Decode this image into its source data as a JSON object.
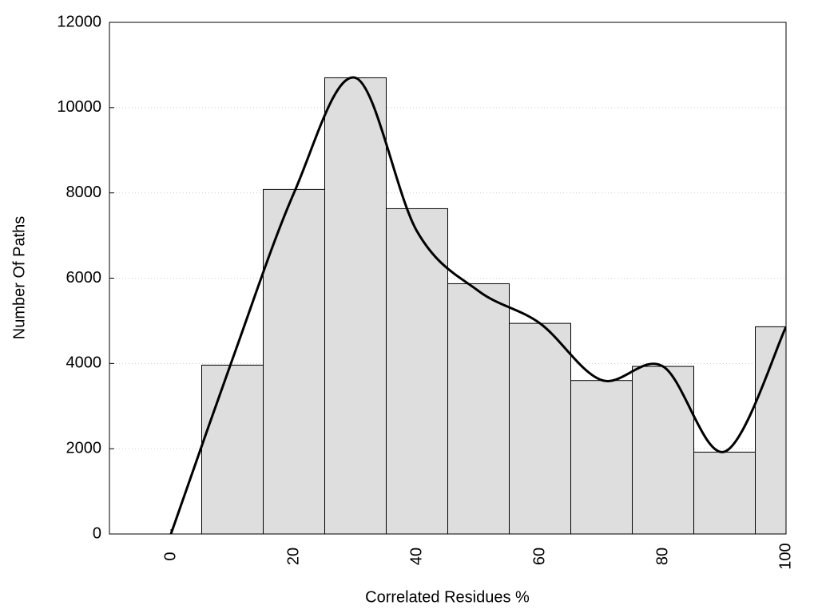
{
  "chart_data": {
    "type": "histogram",
    "xlabel": "Correlated Residues %",
    "ylabel": "Number Of Paths",
    "bins": [
      5,
      15,
      25,
      35,
      45,
      55,
      65,
      75,
      85,
      95,
      105
    ],
    "values": [
      3960,
      8080,
      10700,
      7630,
      5870,
      4940,
      3600,
      3930,
      1920,
      4860
    ],
    "color": "#dedede",
    "curve": {
      "x": [
        0,
        10,
        20,
        30,
        40,
        50,
        60,
        70,
        80,
        90,
        100
      ],
      "values": [
        0,
        4100,
        8000,
        10700,
        7100,
        5700,
        4940,
        3610,
        3930,
        1930,
        4860
      ],
      "color": "#000000"
    },
    "xlim": [
      -10,
      100
    ],
    "ylim": [
      0,
      12000
    ],
    "xticks": [
      0,
      20,
      40,
      60,
      80,
      100
    ],
    "yticks": [
      0,
      2000,
      4000,
      6000,
      8000,
      10000,
      12000
    ],
    "grid": true
  }
}
